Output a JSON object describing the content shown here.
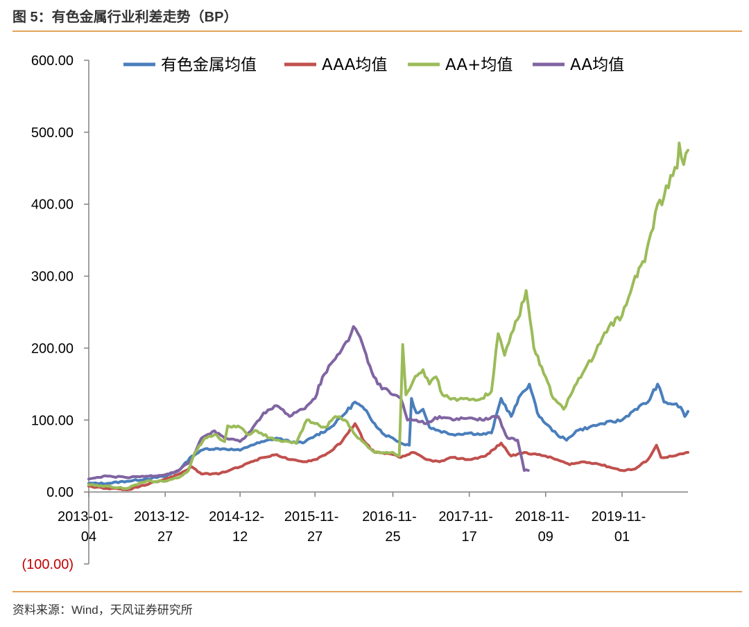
{
  "header": {
    "title": "图 5：有色金属行业利差走势（BP）"
  },
  "footer": {
    "source": "资料来源：Wind，天风证券研究所"
  },
  "chart_data": {
    "type": "line",
    "title": "图 5：有色金属行业利差走势（BP）",
    "xlabel": "",
    "ylabel": "",
    "ylim": [
      -100,
      600
    ],
    "y_ticks": [
      600,
      500,
      400,
      300,
      200,
      100,
      0,
      -100
    ],
    "y_tick_labels": [
      "600.00",
      "500.00",
      "400.00",
      "300.00",
      "200.00",
      "100.00",
      "0.00",
      "(100.00)"
    ],
    "negative_color": "#c00000",
    "x_ticks": [
      {
        "label_line1": "2013-01-",
        "label_line2": "04",
        "x": "2013-01-04"
      },
      {
        "label_line1": "2013-12-",
        "label_line2": "27",
        "x": "2013-12-27"
      },
      {
        "label_line1": "2014-12-",
        "label_line2": "12",
        "x": "2014-12-12"
      },
      {
        "label_line1": "2015-11-",
        "label_line2": "27",
        "x": "2015-11-27"
      },
      {
        "label_line1": "2016-11-",
        "label_line2": "25",
        "x": "2016-11-25"
      },
      {
        "label_line1": "2017-11-",
        "label_line2": "17",
        "x": "2017-11-17"
      },
      {
        "label_line1": "2018-11-",
        "label_line2": "09",
        "x": "2018-11-09"
      },
      {
        "label_line1": "2019-11-",
        "label_line2": "01",
        "x": "2019-11-01"
      }
    ],
    "xlim": [
      "2013-01-04",
      "2020-09-04"
    ],
    "legend": {
      "placement": "top"
    },
    "grid": false,
    "series": [
      {
        "name": "有色金属均值",
        "color": "#4a7ebb",
        "points": [
          [
            "2013-01-04",
            12
          ],
          [
            "2013-04-01",
            12
          ],
          [
            "2013-07-01",
            15
          ],
          [
            "2013-10-01",
            18
          ],
          [
            "2013-12-27",
            22
          ],
          [
            "2014-03-01",
            30
          ],
          [
            "2014-05-01",
            50
          ],
          [
            "2014-07-01",
            60
          ],
          [
            "2014-10-01",
            60
          ],
          [
            "2014-12-12",
            58
          ],
          [
            "2015-02-01",
            65
          ],
          [
            "2015-04-01",
            70
          ],
          [
            "2015-06-01",
            75
          ],
          [
            "2015-08-01",
            70
          ],
          [
            "2015-10-01",
            68
          ],
          [
            "2015-11-27",
            78
          ],
          [
            "2016-02-01",
            88
          ],
          [
            "2016-04-01",
            105
          ],
          [
            "2016-06-01",
            125
          ],
          [
            "2016-07-15",
            115
          ],
          [
            "2016-09-01",
            95
          ],
          [
            "2016-10-15",
            80
          ],
          [
            "2016-11-25",
            75
          ],
          [
            "2017-01-01",
            68
          ],
          [
            "2017-02-10",
            65
          ],
          [
            "2017-02-20",
            130
          ],
          [
            "2017-03-15",
            110
          ],
          [
            "2017-04-15",
            115
          ],
          [
            "2017-05-15",
            90
          ],
          [
            "2017-07-01",
            85
          ],
          [
            "2017-09-01",
            80
          ],
          [
            "2017-11-17",
            82
          ],
          [
            "2018-01-15",
            80
          ],
          [
            "2018-03-01",
            82
          ],
          [
            "2018-04-15",
            130
          ],
          [
            "2018-06-01",
            105
          ],
          [
            "2018-07-15",
            135
          ],
          [
            "2018-08-25",
            150
          ],
          [
            "2018-10-01",
            110
          ],
          [
            "2018-11-09",
            95
          ],
          [
            "2019-01-01",
            80
          ],
          [
            "2019-02-15",
            72
          ],
          [
            "2019-04-01",
            85
          ],
          [
            "2019-06-01",
            90
          ],
          [
            "2019-08-01",
            95
          ],
          [
            "2019-11-01",
            100
          ],
          [
            "2020-01-01",
            115
          ],
          [
            "2020-03-01",
            125
          ],
          [
            "2020-04-15",
            150
          ],
          [
            "2020-05-15",
            125
          ],
          [
            "2020-07-01",
            122
          ],
          [
            "2020-08-01",
            118
          ],
          [
            "2020-08-20",
            105
          ],
          [
            "2020-09-04",
            112
          ]
        ]
      },
      {
        "name": "AAA均值",
        "color": "#c0504d",
        "points": [
          [
            "2013-01-04",
            8
          ],
          [
            "2013-04-01",
            5
          ],
          [
            "2013-07-01",
            3
          ],
          [
            "2013-10-01",
            10
          ],
          [
            "2013-12-27",
            18
          ],
          [
            "2014-03-01",
            25
          ],
          [
            "2014-05-01",
            35
          ],
          [
            "2014-06-15",
            25
          ],
          [
            "2014-09-01",
            25
          ],
          [
            "2014-12-12",
            35
          ],
          [
            "2015-02-01",
            42
          ],
          [
            "2015-04-01",
            48
          ],
          [
            "2015-06-01",
            52
          ],
          [
            "2015-08-01",
            45
          ],
          [
            "2015-10-01",
            42
          ],
          [
            "2015-11-27",
            45
          ],
          [
            "2016-02-01",
            55
          ],
          [
            "2016-04-01",
            70
          ],
          [
            "2016-06-01",
            95
          ],
          [
            "2016-07-15",
            70
          ],
          [
            "2016-09-01",
            55
          ],
          [
            "2016-11-25",
            52
          ],
          [
            "2017-01-01",
            48
          ],
          [
            "2017-03-01",
            55
          ],
          [
            "2017-05-01",
            45
          ],
          [
            "2017-07-01",
            42
          ],
          [
            "2017-09-01",
            48
          ],
          [
            "2017-11-17",
            45
          ],
          [
            "2018-02-01",
            50
          ],
          [
            "2018-04-15",
            68
          ],
          [
            "2018-06-01",
            50
          ],
          [
            "2018-08-01",
            55
          ],
          [
            "2018-10-01",
            52
          ],
          [
            "2018-11-09",
            50
          ],
          [
            "2019-01-01",
            45
          ],
          [
            "2019-03-01",
            38
          ],
          [
            "2019-05-01",
            42
          ],
          [
            "2019-07-01",
            40
          ],
          [
            "2019-09-01",
            35
          ],
          [
            "2019-11-01",
            30
          ],
          [
            "2020-01-01",
            32
          ],
          [
            "2020-03-01",
            45
          ],
          [
            "2020-04-10",
            65
          ],
          [
            "2020-05-01",
            48
          ],
          [
            "2020-07-01",
            50
          ],
          [
            "2020-09-04",
            55
          ]
        ]
      },
      {
        "name": "AA+均值",
        "color": "#9bbb59",
        "points": [
          [
            "2013-01-04",
            10
          ],
          [
            "2013-04-01",
            8
          ],
          [
            "2013-07-01",
            5
          ],
          [
            "2013-10-01",
            15
          ],
          [
            "2013-12-27",
            15
          ],
          [
            "2014-03-01",
            20
          ],
          [
            "2014-04-15",
            30
          ],
          [
            "2014-05-15",
            55
          ],
          [
            "2014-07-01",
            75
          ],
          [
            "2014-08-15",
            80
          ],
          [
            "2014-10-01",
            70
          ],
          [
            "2014-10-15",
            92
          ],
          [
            "2014-12-12",
            90
          ],
          [
            "2015-01-15",
            80
          ],
          [
            "2015-03-01",
            85
          ],
          [
            "2015-05-01",
            75
          ],
          [
            "2015-07-01",
            70
          ],
          [
            "2015-09-01",
            68
          ],
          [
            "2015-10-20",
            100
          ],
          [
            "2015-11-27",
            95
          ],
          [
            "2016-01-15",
            90
          ],
          [
            "2016-03-01",
            105
          ],
          [
            "2016-04-15",
            100
          ],
          [
            "2016-06-15",
            75
          ],
          [
            "2016-09-01",
            55
          ],
          [
            "2016-11-25",
            55
          ],
          [
            "2016-12-25",
            50
          ],
          [
            "2017-01-10",
            205
          ],
          [
            "2017-01-25",
            135
          ],
          [
            "2017-03-01",
            155
          ],
          [
            "2017-04-15",
            170
          ],
          [
            "2017-05-15",
            150
          ],
          [
            "2017-06-15",
            160
          ],
          [
            "2017-07-15",
            135
          ],
          [
            "2017-09-01",
            130
          ],
          [
            "2017-11-17",
            128
          ],
          [
            "2018-01-15",
            130
          ],
          [
            "2018-03-01",
            140
          ],
          [
            "2018-04-01",
            220
          ],
          [
            "2018-05-01",
            190
          ],
          [
            "2018-06-01",
            220
          ],
          [
            "2018-07-01",
            240
          ],
          [
            "2018-08-10",
            280
          ],
          [
            "2018-09-15",
            200
          ],
          [
            "2018-11-09",
            160
          ],
          [
            "2018-12-15",
            130
          ],
          [
            "2019-02-01",
            115
          ],
          [
            "2019-03-15",
            140
          ],
          [
            "2019-05-01",
            165
          ],
          [
            "2019-07-01",
            195
          ],
          [
            "2019-09-01",
            230
          ],
          [
            "2019-11-01",
            245
          ],
          [
            "2020-01-01",
            300
          ],
          [
            "2020-02-15",
            320
          ],
          [
            "2020-03-15",
            360
          ],
          [
            "2020-04-15",
            400
          ],
          [
            "2020-05-15",
            410
          ],
          [
            "2020-06-15",
            440
          ],
          [
            "2020-07-15",
            450
          ],
          [
            "2020-07-25",
            485
          ],
          [
            "2020-08-15",
            455
          ],
          [
            "2020-09-04",
            475
          ]
        ]
      },
      {
        "name": "AA均值",
        "color": "#8064a2",
        "points": [
          [
            "2013-01-04",
            18
          ],
          [
            "2013-04-01",
            22
          ],
          [
            "2013-07-01",
            20
          ],
          [
            "2013-10-01",
            22
          ],
          [
            "2013-12-27",
            24
          ],
          [
            "2014-03-01",
            30
          ],
          [
            "2014-05-01",
            45
          ],
          [
            "2014-06-15",
            75
          ],
          [
            "2014-08-15",
            85
          ],
          [
            "2014-10-01",
            75
          ],
          [
            "2014-12-12",
            70
          ],
          [
            "2015-02-01",
            85
          ],
          [
            "2015-04-01",
            110
          ],
          [
            "2015-06-01",
            120
          ],
          [
            "2015-08-01",
            105
          ],
          [
            "2015-10-01",
            115
          ],
          [
            "2015-11-27",
            130
          ],
          [
            "2016-01-01",
            160
          ],
          [
            "2016-03-01",
            185
          ],
          [
            "2016-05-01",
            210
          ],
          [
            "2016-05-25",
            230
          ],
          [
            "2016-06-25",
            215
          ],
          [
            "2016-08-01",
            180
          ],
          [
            "2016-09-15",
            150
          ],
          [
            "2016-11-25",
            135
          ],
          [
            "2017-01-01",
            130
          ],
          [
            "2017-02-01",
            100
          ],
          [
            "2017-03-15",
            100
          ],
          [
            "2017-05-01",
            95
          ],
          [
            "2017-07-01",
            105
          ],
          [
            "2017-09-01",
            100
          ],
          [
            "2017-11-17",
            103
          ],
          [
            "2018-01-15",
            100
          ],
          [
            "2018-04-01",
            105
          ],
          [
            "2018-05-15",
            75
          ],
          [
            "2018-07-01",
            72
          ],
          [
            "2018-08-01",
            30
          ],
          [
            "2018-08-20",
            30
          ]
        ]
      }
    ]
  }
}
